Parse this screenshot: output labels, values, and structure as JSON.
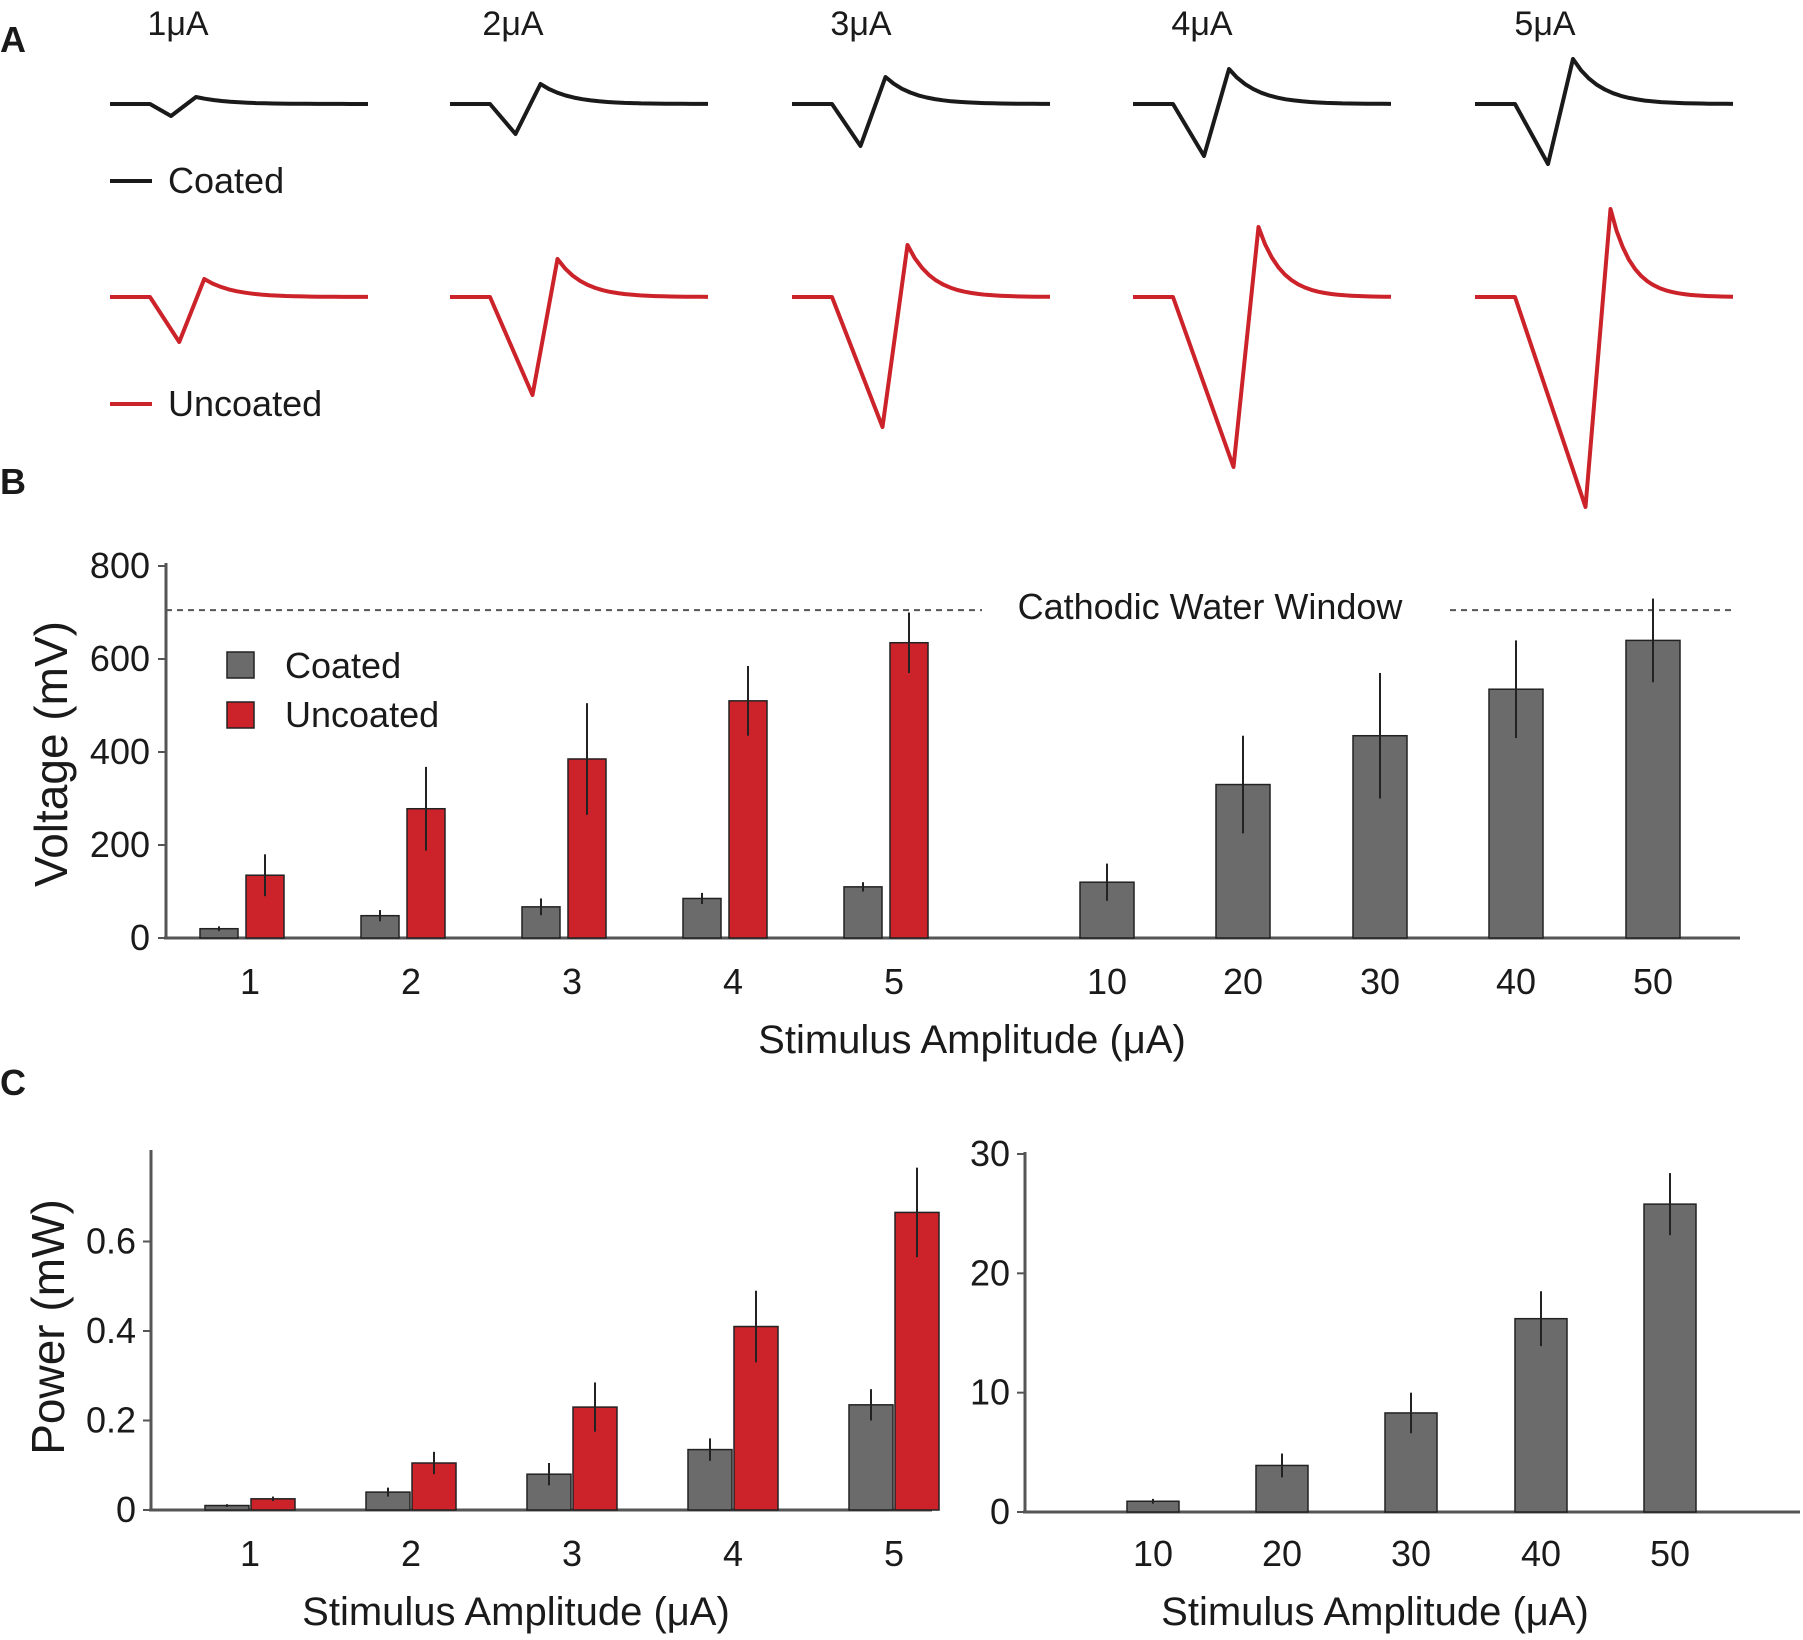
{
  "colors": {
    "coated": "#6b6b6b",
    "uncoated": "#cc2229",
    "coated_trace": "#1a1a1a",
    "axis": "#555555"
  },
  "panels": {
    "a": "A",
    "b": "B",
    "c": "C"
  },
  "chart_data": [
    {
      "id": "A",
      "type": "line",
      "description_labels": [
        "1μA",
        "2μA",
        "3μA",
        "4μA",
        "5μA"
      ],
      "legend": [
        "Coated",
        "Uncoated"
      ],
      "series": [
        {
          "name": "Coated",
          "peak_negative_rel": [
            0.12,
            0.3,
            0.42,
            0.52,
            0.6
          ],
          "peak_positive_rel": [
            0.07,
            0.2,
            0.27,
            0.35,
            0.45
          ]
        },
        {
          "name": "Uncoated",
          "peak_negative_rel": [
            0.45,
            0.98,
            1.3,
            1.7,
            2.1
          ],
          "peak_positive_rel": [
            0.18,
            0.38,
            0.52,
            0.7,
            0.88
          ]
        }
      ]
    },
    {
      "id": "B",
      "type": "bar",
      "xlabel": "Stimulus Amplitude (μA)",
      "ylabel": "Voltage (mV)",
      "ylim": [
        0,
        800
      ],
      "yticks": [
        0,
        200,
        400,
        600,
        800
      ],
      "reference_line": {
        "label": "Cathodic Water Window",
        "value": 705
      },
      "legend": [
        "Coated",
        "Uncoated"
      ],
      "categories": [
        "1",
        "2",
        "3",
        "4",
        "5",
        "10",
        "20",
        "30",
        "40",
        "50"
      ],
      "series": [
        {
          "name": "Coated",
          "values": [
            20,
            48,
            67,
            85,
            110,
            120,
            330,
            435,
            535,
            640
          ],
          "errors": [
            5,
            12,
            18,
            12,
            10,
            40,
            105,
            135,
            105,
            90
          ]
        },
        {
          "name": "Uncoated",
          "values": [
            135,
            278,
            385,
            510,
            635,
            null,
            null,
            null,
            null,
            null
          ],
          "errors": [
            45,
            90,
            120,
            75,
            65,
            null,
            null,
            null,
            null,
            null
          ]
        }
      ]
    },
    {
      "id": "C-left",
      "type": "bar",
      "xlabel": "Stimulus Amplitude (μA)",
      "ylabel": "Power (mW)",
      "ylim": [
        0,
        0.8
      ],
      "yticks": [
        "0",
        "0.2",
        "0.4",
        "0.6"
      ],
      "categories": [
        "1",
        "2",
        "3",
        "4",
        "5"
      ],
      "series": [
        {
          "name": "Coated",
          "values": [
            0.01,
            0.04,
            0.08,
            0.135,
            0.235
          ],
          "errors": [
            0.003,
            0.01,
            0.025,
            0.025,
            0.035
          ]
        },
        {
          "name": "Uncoated",
          "values": [
            0.025,
            0.105,
            0.23,
            0.41,
            0.665
          ],
          "errors": [
            0.005,
            0.025,
            0.055,
            0.08,
            0.1
          ]
        }
      ]
    },
    {
      "id": "C-right",
      "type": "bar",
      "xlabel": "Stimulus Amplitude (μA)",
      "ylabel": "",
      "ylim": [
        0,
        30
      ],
      "yticks": [
        "0",
        "10",
        "20",
        "30"
      ],
      "categories": [
        "10",
        "20",
        "30",
        "40",
        "50"
      ],
      "series": [
        {
          "name": "Coated",
          "values": [
            0.9,
            3.9,
            8.3,
            16.2,
            25.8
          ],
          "errors": [
            0.2,
            1.0,
            1.7,
            2.3,
            2.6
          ]
        }
      ]
    }
  ]
}
